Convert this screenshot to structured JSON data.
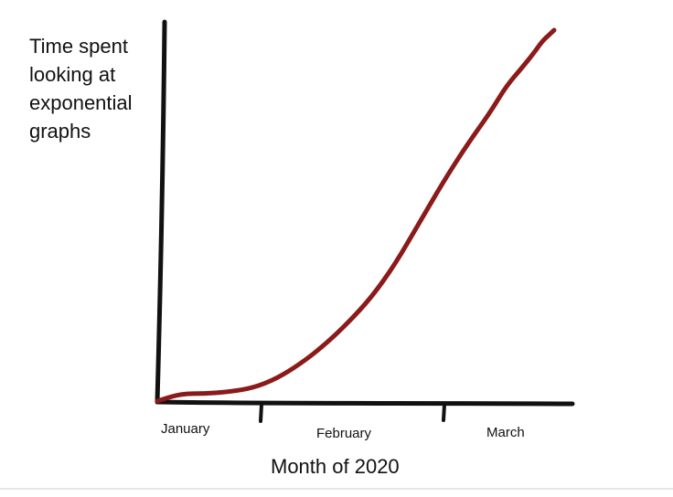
{
  "chart_data": {
    "type": "line",
    "title": "",
    "ylabel_lines": [
      "Time spent",
      "looking at",
      "exponential",
      "graphs"
    ],
    "xlabel": "Month of 2020",
    "x_tick_labels": [
      "January",
      "February",
      "March"
    ],
    "series": [
      {
        "color": "#8b1a1a",
        "x": [
          0,
          0.06,
          0.12,
          0.18,
          0.24,
          0.3,
          0.36,
          0.42,
          0.48,
          0.54,
          0.6,
          0.66,
          0.72,
          0.78,
          0.84,
          0.88,
          0.92,
          0.95,
          0.97,
          0.99,
          1.0
        ],
        "y": [
          0.0,
          0.02,
          0.02,
          0.025,
          0.035,
          0.06,
          0.1,
          0.15,
          0.21,
          0.28,
          0.37,
          0.48,
          0.59,
          0.69,
          0.78,
          0.85,
          0.9,
          0.94,
          0.97,
          0.99,
          1.0
        ]
      }
    ],
    "grid": false,
    "legend": "none"
  },
  "colors": {
    "axis": "#111111",
    "curve": "#8b1a1a"
  }
}
